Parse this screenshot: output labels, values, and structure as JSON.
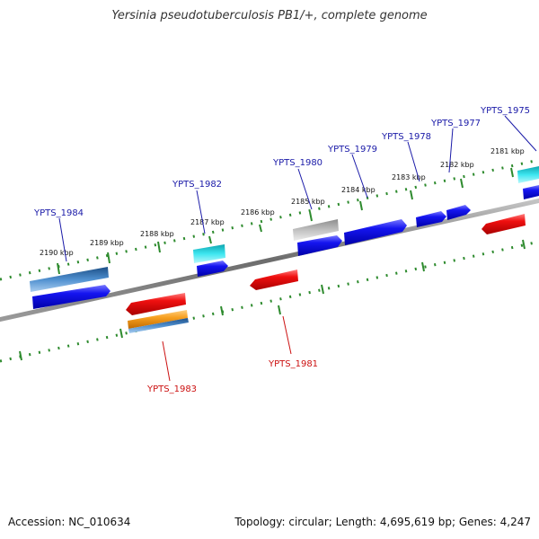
{
  "title": "Yersinia pseudotuberculosis PB1/+, complete genome",
  "footer": {
    "accession": "Accession: NC_010634",
    "summary": "Topology: circular; Length: 4,695,619 bp; Genes: 4,247"
  },
  "colors": {
    "backbone": "#7a7a7a",
    "tick_track": "#2e8b2e",
    "forward_blue": "#1010e0",
    "reverse_red": "#e01010",
    "cyan": "#20c8d8",
    "steel_blue": "#3a78b0",
    "orange": "#f39a12",
    "gray": "#b4b4b4",
    "label_forward": "#1a1aa8",
    "label_reverse": "#cc1111"
  },
  "scale_ticks": [
    "2190 kbp",
    "2189 kbp",
    "2188 kbp",
    "2187 kbp",
    "2186 kbp",
    "2185 kbp",
    "2184 kbp",
    "2183 kbp",
    "2182 kbp",
    "2181 kbp"
  ],
  "genes_forward": [
    "YPTS_1984",
    "YPTS_1982",
    "YPTS_1980",
    "YPTS_1979",
    "YPTS_1978",
    "YPTS_1977",
    "YPTS_1975"
  ],
  "genes_reverse": [
    "YPTS_1983",
    "YPTS_1981"
  ]
}
